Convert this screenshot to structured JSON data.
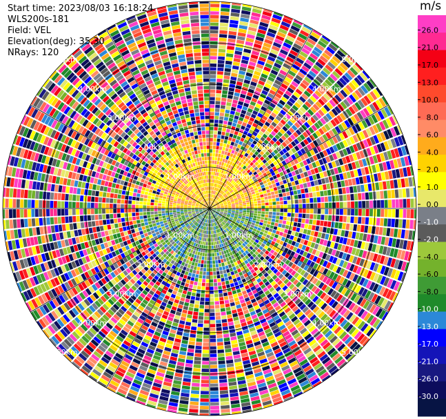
{
  "header": {
    "start_time": "Start time: 2023/08/03 16:18:24",
    "instrument": "WLS200s-181",
    "field": "Field: VEL",
    "elevation": "Elevation(deg): 35.30",
    "nrays": "NRays: 120"
  },
  "chart_data": {
    "type": "heatmap",
    "projection": "polar",
    "field": "VEL",
    "unit": "m/s",
    "n_rays": 120,
    "elevation_deg": 35.3,
    "range_ring_labels": [
      "1.00km",
      "2.00km",
      "3.00km",
      "4.00km",
      "5.00km"
    ],
    "colorbar": {
      "ticks": [
        "26.0",
        "21.0",
        "17.0",
        "13.0",
        "10.0",
        "8.0",
        "6.0",
        "4.0",
        "2.0",
        "1.0",
        "0.0",
        "-1.0",
        "-2.0",
        "-4.0",
        "-6.0",
        "-8.0",
        "-10.0",
        "-13.0",
        "-17.0",
        "-21.0",
        "-26.0",
        "-30.0"
      ],
      "colors": [
        "#ff3ec6",
        "#ff2a92",
        "#f40015",
        "#ff1f1f",
        "#ff4a2c",
        "#ff6b55",
        "#ff8b66",
        "#ffab1c",
        "#ffd200",
        "#ffff00",
        "#e8e86a",
        "#7a7f88",
        "#5b5b5b",
        "#9dc83b",
        "#74b22c",
        "#3f9b35",
        "#1f8a2a",
        "#2c88d8",
        "#0000ff",
        "#1414b8",
        "#181880",
        "#0d0d5c",
        "#071444"
      ]
    },
    "near_field_sectors": [
      {
        "azimuth_range": [
          180,
          360
        ],
        "dominant": "positive",
        "colors": [
          "#ffff00",
          "#ffd200",
          "#ffab1c",
          "#ff8b66"
        ]
      },
      {
        "azimuth_range": [
          0,
          180
        ],
        "dominant": "mixed",
        "colors": [
          "#7a7f88",
          "#9dc83b",
          "#74b22c",
          "#3f9b35",
          "#2c88d8"
        ]
      }
    ],
    "grid": true
  }
}
